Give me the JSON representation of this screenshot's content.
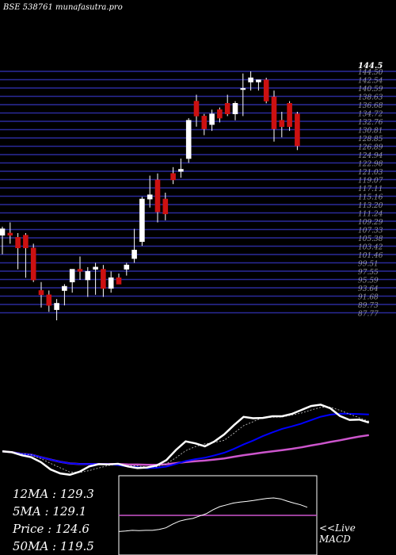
{
  "header": "BSE 538761 munafasutra.pro",
  "price_panel": {
    "top_label": "144.5",
    "candles": [
      {
        "o": 106.0,
        "h": 108.0,
        "l": 101.5,
        "c": 107.5
      },
      {
        "o": 106.5,
        "h": 109.0,
        "l": 104.0,
        "c": 106.0
      },
      {
        "o": 105.5,
        "h": 106.5,
        "l": 98.0,
        "c": 103.0
      },
      {
        "o": 106.0,
        "h": 106.5,
        "l": 96.0,
        "c": 103.0
      },
      {
        "o": 103.0,
        "h": 104.0,
        "l": 95.0,
        "c": 95.5
      },
      {
        "o": 93.0,
        "h": 95.0,
        "l": 89.0,
        "c": 92.0
      },
      {
        "o": 92.0,
        "h": 93.0,
        "l": 88.0,
        "c": 89.5
      },
      {
        "o": 88.5,
        "h": 91.0,
        "l": 86.0,
        "c": 90.0
      },
      {
        "o": 93.0,
        "h": 94.5,
        "l": 89.5,
        "c": 94.0
      },
      {
        "o": 95.0,
        "h": 98.0,
        "l": 92.5,
        "c": 98.0
      },
      {
        "o": 98.0,
        "h": 101.0,
        "l": 95.5,
        "c": 97.5
      },
      {
        "o": 95.5,
        "h": 98.5,
        "l": 91.5,
        "c": 97.5
      },
      {
        "o": 98.0,
        "h": 99.5,
        "l": 92.0,
        "c": 98.5
      },
      {
        "o": 98.0,
        "h": 99.0,
        "l": 91.5,
        "c": 93.5
      },
      {
        "o": 93.5,
        "h": 97.5,
        "l": 92.5,
        "c": 96.0
      },
      {
        "o": 96.0,
        "h": 97.0,
        "l": 94.5,
        "c": 94.5
      },
      {
        "o": 98.0,
        "h": 99.5,
        "l": 96.5,
        "c": 99.0
      },
      {
        "o": 100.5,
        "h": 107.5,
        "l": 99.5,
        "c": 102.5
      },
      {
        "o": 104.5,
        "h": 115.0,
        "l": 103.5,
        "c": 114.5
      },
      {
        "o": 114.5,
        "h": 120.0,
        "l": 112.5,
        "c": 115.5
      },
      {
        "o": 119.0,
        "h": 120.5,
        "l": 109.0,
        "c": 111.5
      },
      {
        "o": 114.5,
        "h": 116.0,
        "l": 109.5,
        "c": 111.0
      },
      {
        "o": 120.5,
        "h": 122.0,
        "l": 118.0,
        "c": 119.0
      },
      {
        "o": 121.0,
        "h": 124.0,
        "l": 119.5,
        "c": 121.5
      },
      {
        "o": 124.0,
        "h": 133.5,
        "l": 123.0,
        "c": 133.0
      },
      {
        "o": 137.5,
        "h": 139.0,
        "l": 131.5,
        "c": 134.0
      },
      {
        "o": 134.0,
        "h": 134.5,
        "l": 129.5,
        "c": 131.0
      },
      {
        "o": 132.0,
        "h": 135.5,
        "l": 130.5,
        "c": 134.5
      },
      {
        "o": 135.5,
        "h": 136.0,
        "l": 132.5,
        "c": 133.5
      },
      {
        "o": 137.0,
        "h": 139.0,
        "l": 134.0,
        "c": 134.5
      },
      {
        "o": 134.5,
        "h": 137.5,
        "l": 133.0,
        "c": 137.0
      },
      {
        "o": 140.5,
        "h": 144.0,
        "l": 134.0,
        "c": 140.5
      },
      {
        "o": 142.0,
        "h": 144.5,
        "l": 140.0,
        "c": 143.0
      },
      {
        "o": 142.0,
        "h": 142.5,
        "l": 140.0,
        "c": 142.5
      },
      {
        "o": 142.5,
        "h": 143.0,
        "l": 137.0,
        "c": 137.5
      },
      {
        "o": 138.5,
        "h": 140.0,
        "l": 128.0,
        "c": 131.0
      },
      {
        "o": 133.0,
        "h": 135.0,
        "l": 129.0,
        "c": 131.5
      },
      {
        "o": 137.0,
        "h": 137.5,
        "l": 130.5,
        "c": 131.5
      },
      {
        "o": 134.5,
        "h": 135.0,
        "l": 126.0,
        "c": 127.0
      }
    ]
  },
  "stats": [
    {
      "label": "12MA : 129.3"
    },
    {
      "label": "5MA : 129.1"
    },
    {
      "label": "Price  : 124.6"
    },
    {
      "label": "50MA : 119.5"
    }
  ],
  "macd_label_1": "<<Live",
  "macd_label_2": "MACD",
  "colors": {
    "up": "#ffffff",
    "down": "#cc1111",
    "gridline": "#2a2a9a",
    "ma_white": "#ffffff",
    "ma_blue": "#0000ff",
    "ma_magenta": "#cc55cc",
    "macd_line": "#cc55cc"
  }
}
